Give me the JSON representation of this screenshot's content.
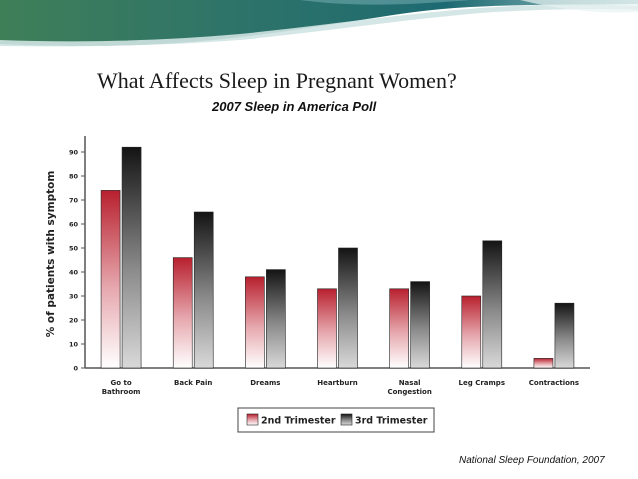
{
  "title": "What Affects Sleep in Pregnant Women?",
  "subtitle": "2007 Sleep in America Poll",
  "source": "National Sleep Foundation, 2007",
  "colors": {
    "series_2nd": "#b8202e",
    "series_3rd": "#1a1a1a",
    "banner_teal": "#1e6a72",
    "banner_green": "#4a8f50"
  },
  "chart_data": {
    "type": "bar",
    "ylabel": "% of patients with symptom",
    "xlabel": "",
    "ylim": [
      0,
      95
    ],
    "yticks": [
      0,
      10,
      20,
      30,
      40,
      50,
      60,
      70,
      80,
      90
    ],
    "categories": [
      [
        "Go to",
        "Bathroom"
      ],
      [
        "Back Pain"
      ],
      [
        "Dreams"
      ],
      [
        "Heartburn"
      ],
      [
        "Nasal",
        "Congestion"
      ],
      [
        "Leg Cramps"
      ],
      [
        "Contractions"
      ]
    ],
    "series": [
      {
        "name": "2nd Trimester",
        "values": [
          74,
          46,
          38,
          33,
          33,
          30,
          4
        ]
      },
      {
        "name": "3rd Trimester",
        "values": [
          92,
          65,
          41,
          50,
          36,
          53,
          27
        ]
      }
    ],
    "legend_position": "bottom-center",
    "grid": false
  }
}
